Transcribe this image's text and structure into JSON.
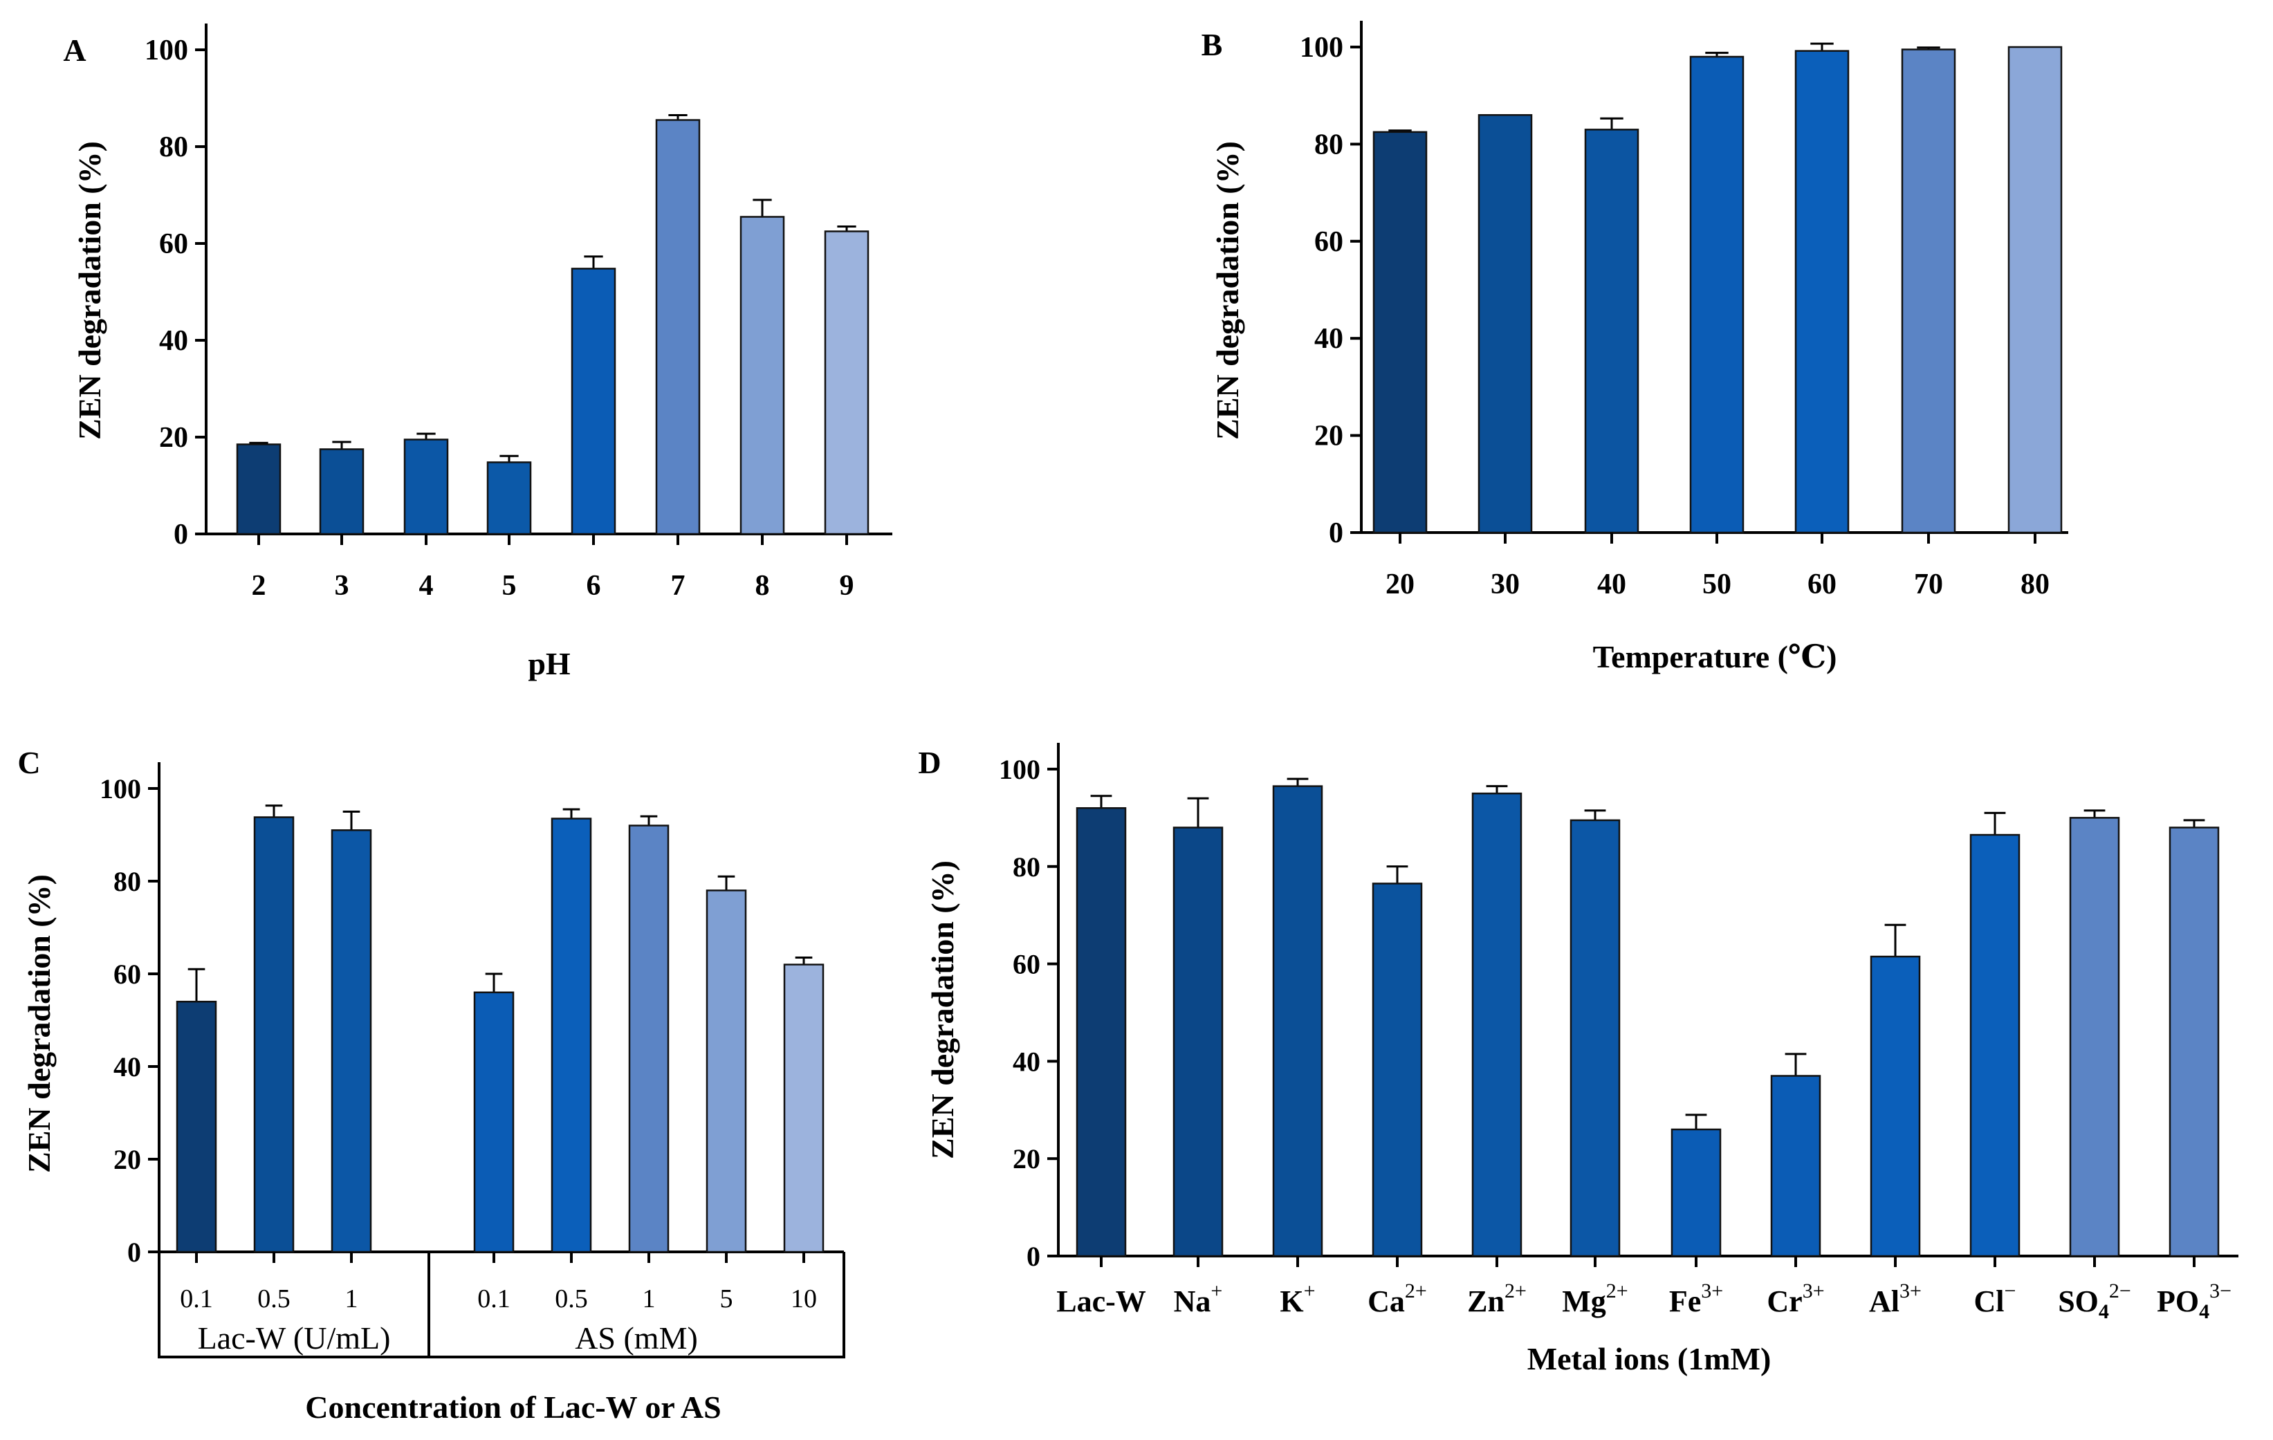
{
  "chart_data": [
    {
      "panel": "A",
      "type": "bar",
      "xlabel": "pH",
      "ylabel": "ZEN degradation (%)",
      "ylim": [
        0,
        100
      ],
      "yticks": [
        0,
        20,
        40,
        60,
        80,
        100
      ],
      "categories": [
        "2",
        "3",
        "4",
        "5",
        "6",
        "7",
        "8",
        "9"
      ],
      "values": [
        18.5,
        17.5,
        19.5,
        14.8,
        54.8,
        85.5,
        65.5,
        62.5
      ],
      "errors": [
        0.3,
        1.5,
        1.2,
        1.3,
        2.5,
        1.0,
        3.5,
        1.0
      ],
      "colors": [
        "#0d3d73",
        "#0b4f96",
        "#0c57a6",
        "#0c59a8",
        "#0b5cb5",
        "#5b84c5",
        "#7f9fd3",
        "#9cb3dd"
      ]
    },
    {
      "panel": "B",
      "type": "bar",
      "xlabel": "Temperature (℃)",
      "ylabel": "ZEN degradation (%)",
      "ylim": [
        0,
        100
      ],
      "yticks": [
        0,
        20,
        40,
        60,
        80,
        100
      ],
      "categories": [
        "20",
        "30",
        "40",
        "50",
        "60",
        "70",
        "80"
      ],
      "values": [
        82.5,
        86.0,
        83.0,
        98.0,
        99.2,
        99.5,
        100.0
      ],
      "errors": [
        0.3,
        0.0,
        2.3,
        0.8,
        1.5,
        0.4,
        0.0
      ],
      "colors": [
        "#0d3d73",
        "#0b4f96",
        "#0c55a2",
        "#0b5cb5",
        "#0b5fba",
        "#5b84c5",
        "#8ba7d8"
      ]
    },
    {
      "panel": "C",
      "type": "bar",
      "xlabel": "Concentration of Lac-W or AS",
      "ylabel": "ZEN degradation (%)",
      "ylim": [
        0,
        100
      ],
      "yticks": [
        0,
        20,
        40,
        60,
        80,
        100
      ],
      "groups": [
        {
          "label": "Lac-W (U/mL)",
          "categories": [
            "0.1",
            "0.5",
            "1"
          ],
          "values": [
            54.0,
            93.8,
            91.0
          ],
          "errors": [
            7.0,
            2.5,
            4.0
          ],
          "colors": [
            "#0d3d73",
            "#0b4f96",
            "#0c57a6"
          ]
        },
        {
          "label": "AS (mM)",
          "categories": [
            "0.1",
            "0.5",
            "1",
            "5",
            "10"
          ],
          "values": [
            56.0,
            93.5,
            92.0,
            78.0,
            62.0
          ],
          "errors": [
            4.0,
            2.0,
            2.0,
            3.0,
            1.5
          ],
          "colors": [
            "#0b5cb5",
            "#0b5fba",
            "#5b84c5",
            "#7f9fd3",
            "#9cb3dd"
          ]
        }
      ]
    },
    {
      "panel": "D",
      "type": "bar",
      "xlabel": "Metal ions (1mM)",
      "ylabel": "ZEN degradation (%)",
      "ylim": [
        0,
        100
      ],
      "yticks": [
        0,
        20,
        40,
        60,
        80,
        100
      ],
      "categories": [
        {
          "base": "Lac-W",
          "sup": "",
          "sub": ""
        },
        {
          "base": "Na",
          "sup": "+",
          "sub": ""
        },
        {
          "base": "K",
          "sup": "+",
          "sub": ""
        },
        {
          "base": "Ca",
          "sup": "2+",
          "sub": ""
        },
        {
          "base": "Zn",
          "sup": "2+",
          "sub": ""
        },
        {
          "base": "Mg",
          "sup": "2+",
          "sub": ""
        },
        {
          "base": "Fe",
          "sup": "3+",
          "sub": ""
        },
        {
          "base": "Cr",
          "sup": "3+",
          "sub": ""
        },
        {
          "base": "Al",
          "sup": "3+",
          "sub": ""
        },
        {
          "base": "Cl",
          "sup": "−",
          "sub": ""
        },
        {
          "base": "SO",
          "sup": "2−",
          "sub": "4"
        },
        {
          "base": "PO",
          "sup": "3−",
          "sub": "4"
        }
      ],
      "values": [
        92.0,
        88.0,
        96.5,
        76.5,
        95.0,
        89.5,
        26.0,
        37.0,
        61.5,
        86.5,
        90.0,
        88.0
      ],
      "errors": [
        2.5,
        6.0,
        1.5,
        3.5,
        1.5,
        2.0,
        3.0,
        4.5,
        6.5,
        4.5,
        1.5,
        1.5
      ],
      "colors": [
        "#0d3d73",
        "#0b4788",
        "#0b4f96",
        "#0b539e",
        "#0c57a6",
        "#0c57a6",
        "#0b5cb5",
        "#0b5cb5",
        "#0b5fba",
        "#0b5fba",
        "#5b84c5",
        "#5b84c5"
      ]
    }
  ]
}
